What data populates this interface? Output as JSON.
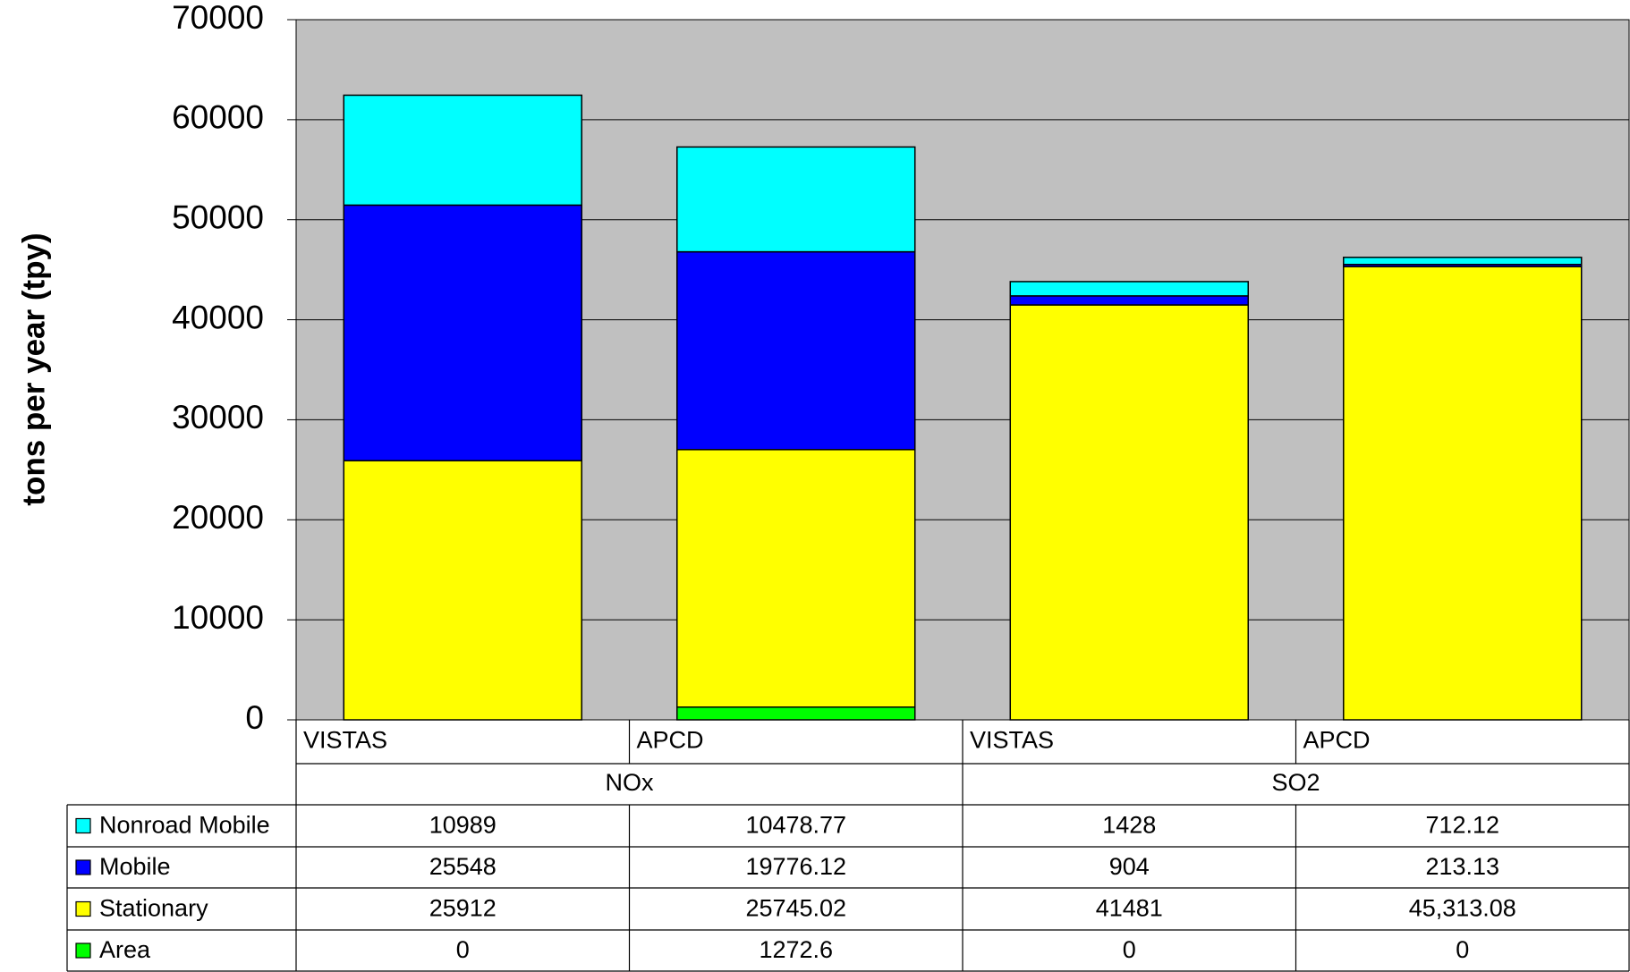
{
  "chart_data": {
    "type": "bar",
    "stacked": true,
    "y_label": "tons per year (tpy)",
    "categories": [
      "VISTAS",
      "APCD",
      "VISTAS",
      "APCD"
    ],
    "groups": [
      "NOx",
      "SO2"
    ],
    "series": [
      {
        "name": "Nonroad Mobile",
        "color": "#00ffff",
        "values": [
          10989,
          10478.77,
          1428,
          712.12
        ]
      },
      {
        "name": "Mobile",
        "color": "#0000ff",
        "values": [
          25548,
          19776.12,
          904,
          213.13
        ]
      },
      {
        "name": "Stationary",
        "color": "#ffff00",
        "values": [
          25912,
          25745.02,
          41481,
          45313.08
        ],
        "value_labels": [
          "25912",
          "25745.02",
          "41481",
          "45,313.08"
        ]
      },
      {
        "name": "Area",
        "color": "#00ff00",
        "values": [
          0,
          1272.6,
          0,
          0
        ]
      }
    ],
    "ylim": [
      0,
      70000
    ],
    "yticks": [
      0,
      10000,
      20000,
      30000,
      40000,
      50000,
      60000,
      70000
    ],
    "grid": true,
    "plot_background": "#c0c0c0"
  }
}
